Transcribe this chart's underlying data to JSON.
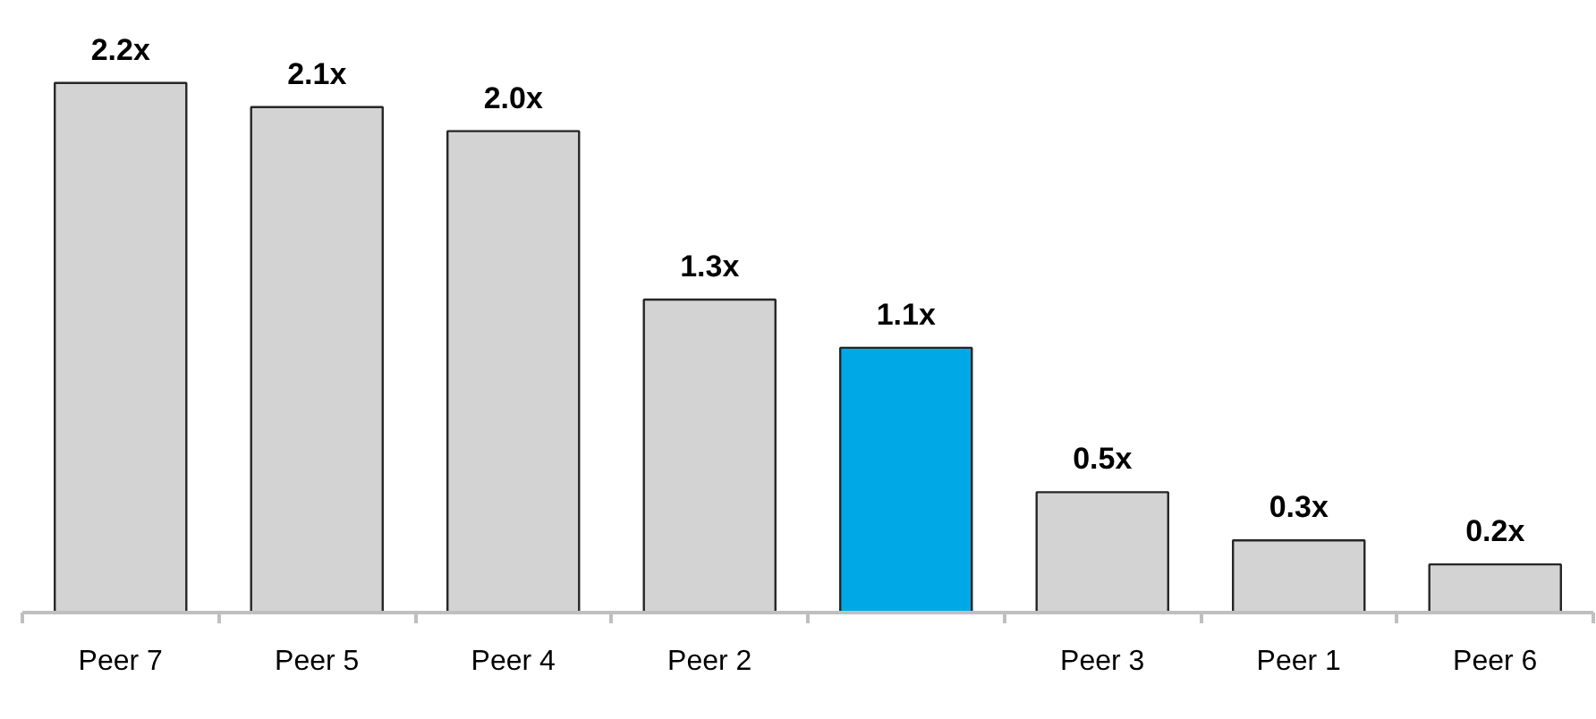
{
  "chart_data": {
    "type": "bar",
    "categories": [
      "Peer 7",
      "Peer 5",
      "Peer 4",
      "Peer 2",
      null,
      "Peer 3",
      "Peer 1",
      "Peer 6"
    ],
    "values": [
      2.2,
      2.1,
      2.0,
      1.3,
      1.1,
      0.5,
      0.3,
      0.2
    ],
    "colors": [
      "#d3d3d3",
      "#d3d3d3",
      "#d3d3d3",
      "#d3d3d3",
      "#00a9e6",
      "#d3d3d3",
      "#d3d3d3",
      "#d3d3d3"
    ],
    "value_labels": [
      "2.2x",
      "2.1x",
      "2.0x",
      "1.3x",
      "1.1x",
      "0.5x",
      "0.3x",
      "0.2x"
    ],
    "grid": false
  }
}
